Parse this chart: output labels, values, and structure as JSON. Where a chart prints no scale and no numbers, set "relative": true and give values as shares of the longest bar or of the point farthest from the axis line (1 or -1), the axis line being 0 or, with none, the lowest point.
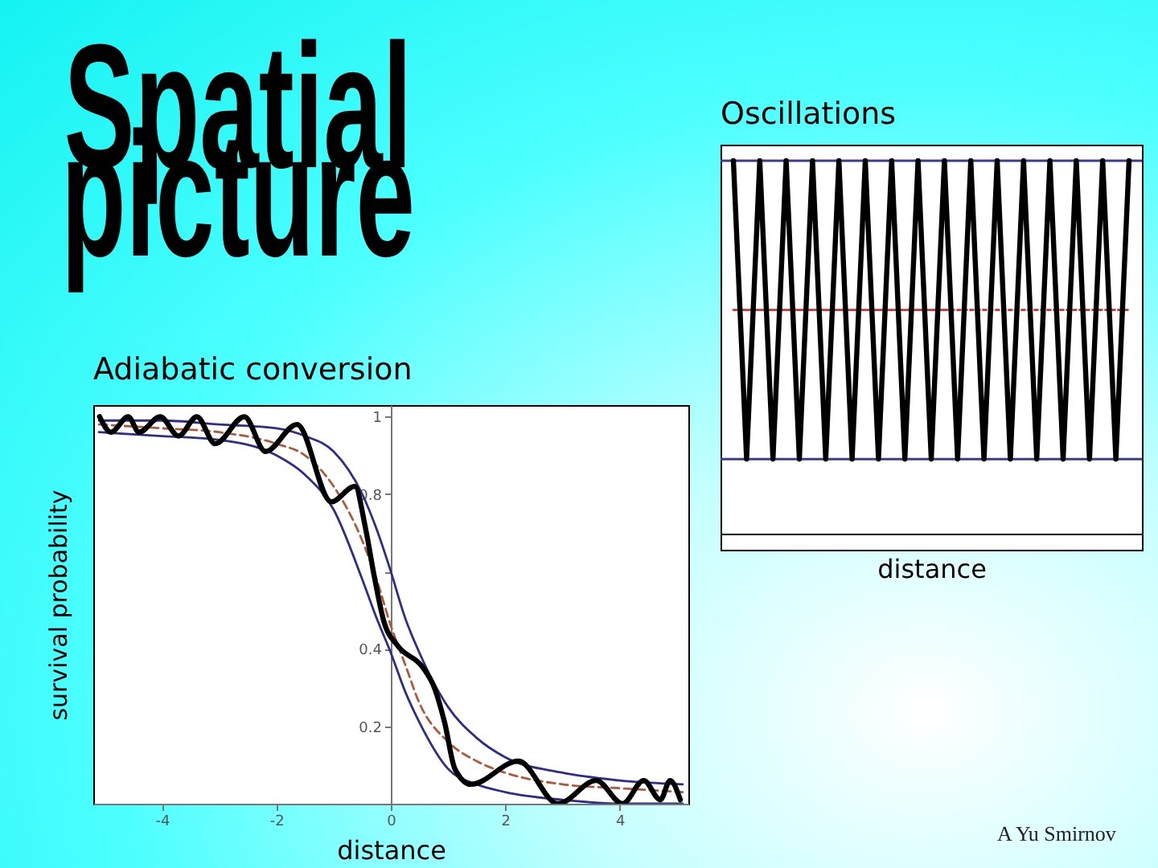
{
  "chart_data": [
    {
      "type": "line",
      "title": "Oscillations",
      "xlabel": "distance",
      "relative": true,
      "categories": [
        null,
        null,
        null,
        null,
        null,
        null,
        null,
        null,
        null,
        null,
        null,
        null,
        null,
        null,
        null,
        null,
        null,
        null,
        null,
        null,
        null,
        null,
        null,
        null,
        null,
        null,
        null,
        null,
        null,
        null,
        null
      ],
      "series": [
        {
          "color": "#000000",
          "values": [
            1,
            0.2,
            1,
            0.2,
            1,
            0.2,
            1,
            0.2,
            1,
            0.2,
            1,
            0.2,
            1,
            0.2,
            1,
            0.2,
            1,
            0.2,
            1,
            0.2,
            1,
            0.2,
            1,
            0.2,
            1,
            0.2,
            1,
            0.2,
            1,
            0.2,
            1
          ]
        },
        {
          "color": "#cc3333",
          "values": [
            0.6,
            0.6,
            0.6,
            0.6,
            0.6,
            0.6,
            0.6,
            0.6,
            0.6,
            0.6,
            0.6,
            0.6,
            0.6,
            0.6,
            0.6,
            0.6,
            0.6,
            null,
            null,
            null,
            null,
            null,
            null,
            null,
            null,
            null,
            null,
            null,
            null,
            null,
            null
          ]
        },
        {
          "color": "#cc3333",
          "line_style": "dotted",
          "values": [
            null,
            null,
            null,
            null,
            null,
            null,
            null,
            null,
            null,
            null,
            null,
            null,
            null,
            null,
            null,
            null,
            0.6,
            0.6,
            0.6,
            0.6,
            0.6,
            0.6,
            0.6,
            0.6,
            0.6,
            0.6,
            0.6,
            0.6,
            0.6,
            0.6,
            0.6
          ]
        }
      ],
      "ref_lines": [
        {
          "axis": "y",
          "value": 1,
          "color": "#3c3c8c"
        },
        {
          "axis": "y",
          "value": 0.2,
          "color": "#3c3c8c"
        }
      ],
      "annotations": [
        "Spatial picture"
      ]
    },
    {
      "type": "line",
      "title": "Adiabatic conversion",
      "xlabel": "distance",
      "ylabel": "survival probability",
      "xlim": [
        -5.2,
        5.2
      ],
      "ylim": [
        0,
        1.03
      ],
      "xticks": [
        -4,
        -2,
        0,
        2,
        4
      ],
      "yticks": [
        0.2,
        0.4,
        {
          "value": 0.6,
          "label": null
        },
        0.8,
        1
      ],
      "x": [
        -5.1,
        -4,
        -3,
        -2,
        -1.5,
        -1,
        -0.5,
        -0.25,
        0,
        0.25,
        0.5,
        1,
        1.5,
        2,
        3,
        4,
        5.1
      ],
      "series": [
        {
          "color": "#000000",
          "x": [
            -5.09,
            -4.89,
            -4.59,
            -4.4,
            -4.03,
            -3.71,
            -3.39,
            -3.07,
            -2.56,
            -2.19,
            -1.64,
            -1.04,
            -0.63,
            -0.44,
            -0.28,
            -0.12,
            0.11,
            0.57,
            0.76,
            0.94,
            1.12,
            1.4,
            2.23,
            2.92,
            3.59,
            4.05,
            4.42,
            4.71,
            4.88,
            5.06
          ],
          "values": [
            1,
            0.96,
            1,
            0.96,
            1,
            0.95,
            1,
            0.93,
            1,
            0.91,
            0.98,
            0.78,
            0.82,
            0.71,
            0.58,
            0.47,
            0.41,
            0.35,
            0.3,
            0.21,
            0.09,
            0.05,
            0.11,
            0,
            0.06,
            0,
            0.06,
            0.01,
            0.06,
            0.01
          ]
        },
        {
          "color": "#b05a3c",
          "line_style": "dashed",
          "values": [
            0.98,
            0.97,
            0.96,
            0.93,
            0.9,
            0.82,
            0.68,
            0.58,
            0.46,
            0.36,
            0.26,
            0.16,
            0.11,
            0.08,
            0.05,
            0.04,
            0.03
          ]
        },
        {
          "color": "#2d2d8a",
          "values": [
            0.99,
            0.99,
            0.98,
            0.97,
            0.95,
            0.91,
            0.8,
            0.71,
            0.6,
            0.48,
            0.39,
            0.25,
            0.17,
            0.12,
            0.08,
            0.06,
            0.05
          ]
        },
        {
          "color": "#2d2d8a",
          "values": [
            0.96,
            0.95,
            0.94,
            0.9,
            0.85,
            0.76,
            0.58,
            0.48,
            0.39,
            0.29,
            0.21,
            0.09,
            0.05,
            0.03,
            0.01,
            0,
            0
          ]
        }
      ],
      "annotations": [
        "A Yu Smirnov"
      ]
    }
  ]
}
